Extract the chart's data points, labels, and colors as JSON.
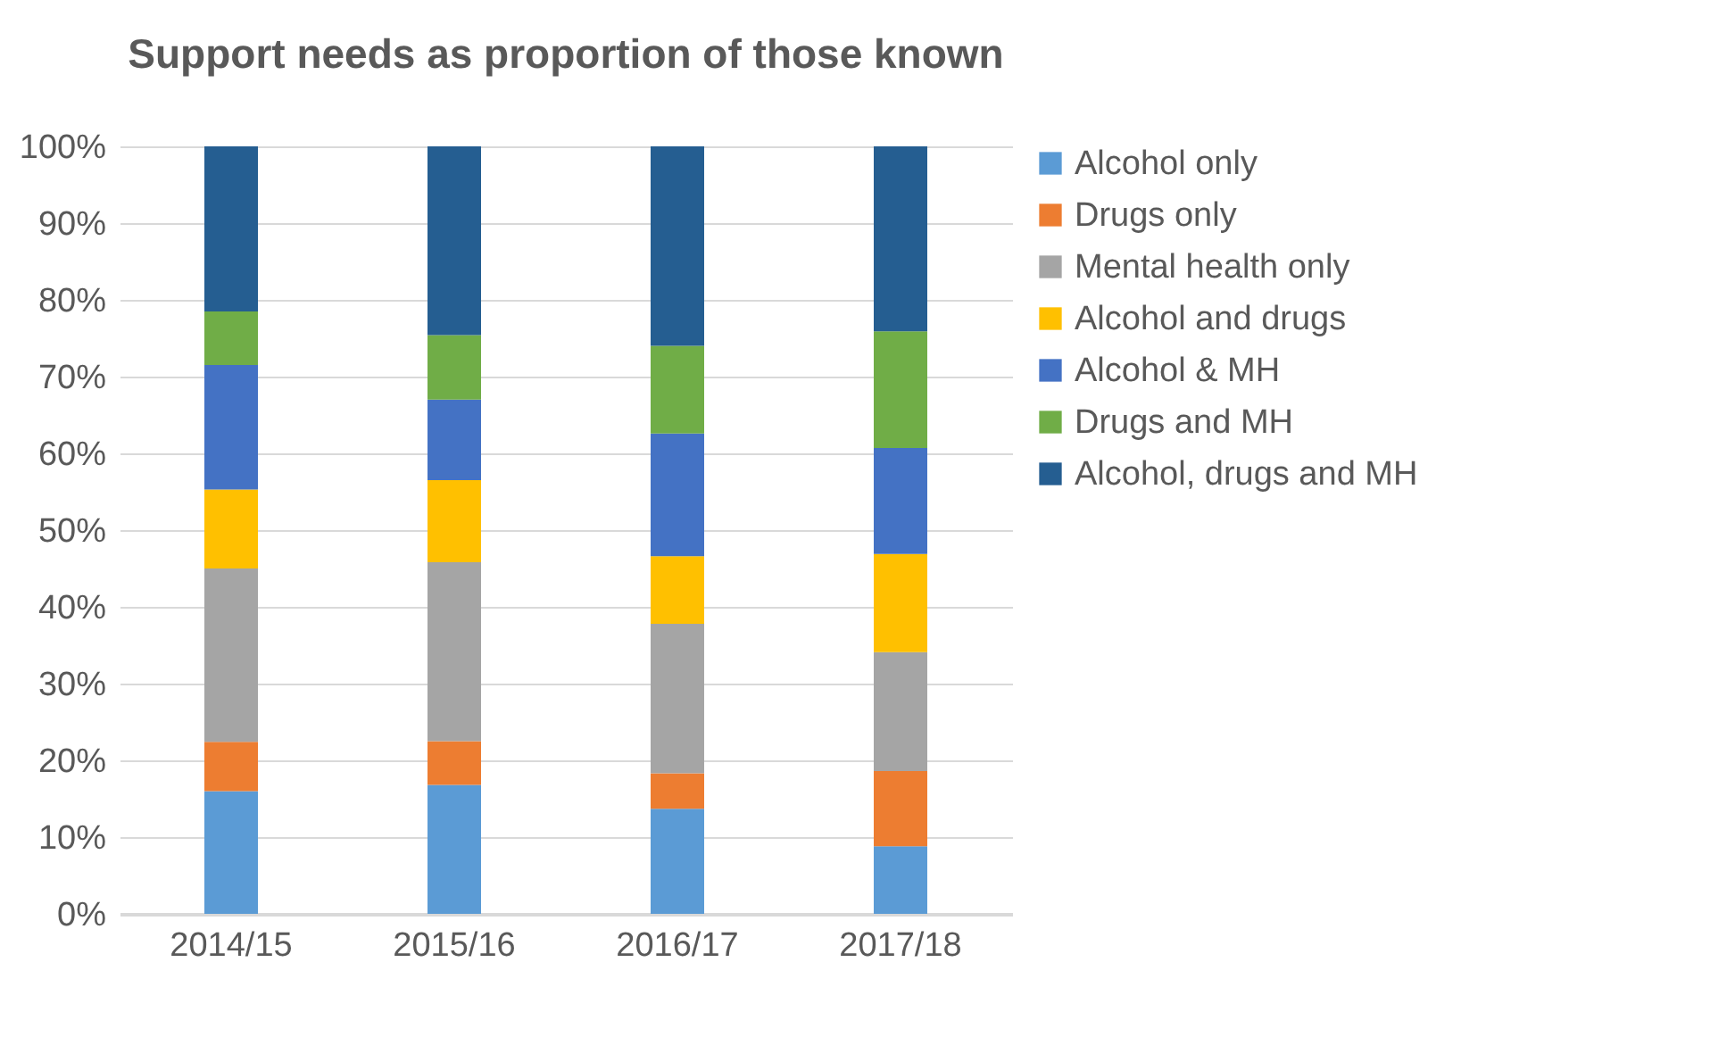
{
  "chart_data": {
    "type": "bar",
    "stacked": true,
    "title": "Support needs as proportion of those known",
    "categories": [
      "2014/15",
      "2015/16",
      "2016/17",
      "2017/18"
    ],
    "series": [
      {
        "name": "Alcohol only",
        "color": "#5b9bd5",
        "values": [
          16.0,
          16.8,
          13.7,
          8.8
        ]
      },
      {
        "name": "Drugs only",
        "color": "#ed7d31",
        "values": [
          6.4,
          5.7,
          4.6,
          9.8
        ]
      },
      {
        "name": "Mental health only",
        "color": "#a5a5a5",
        "values": [
          22.6,
          23.3,
          19.5,
          15.5
        ]
      },
      {
        "name": "Alcohol and drugs",
        "color": "#ffc000",
        "values": [
          10.3,
          10.7,
          8.8,
          12.8
        ]
      },
      {
        "name": "Alcohol & MH",
        "color": "#4472c4",
        "values": [
          16.2,
          10.5,
          16.0,
          13.8
        ]
      },
      {
        "name": "Drugs and MH",
        "color": "#70ad47",
        "values": [
          7.0,
          8.4,
          11.4,
          15.2
        ]
      },
      {
        "name": "Alcohol, drugs and MH",
        "color": "#255e91",
        "values": [
          21.5,
          24.6,
          26.0,
          24.1
        ]
      }
    ],
    "ylim": [
      0,
      100
    ],
    "yticks": [
      {
        "value": 0,
        "label": "0%"
      },
      {
        "value": 10,
        "label": "10%"
      },
      {
        "value": 20,
        "label": "20%"
      },
      {
        "value": 30,
        "label": "30%"
      },
      {
        "value": 40,
        "label": "40%"
      },
      {
        "value": 50,
        "label": "50%"
      },
      {
        "value": 60,
        "label": "60%"
      },
      {
        "value": 70,
        "label": "70%"
      },
      {
        "value": 80,
        "label": "80%"
      },
      {
        "value": 90,
        "label": "90%"
      },
      {
        "value": 100,
        "label": "100%"
      }
    ],
    "grid": "y",
    "legend": "right"
  }
}
